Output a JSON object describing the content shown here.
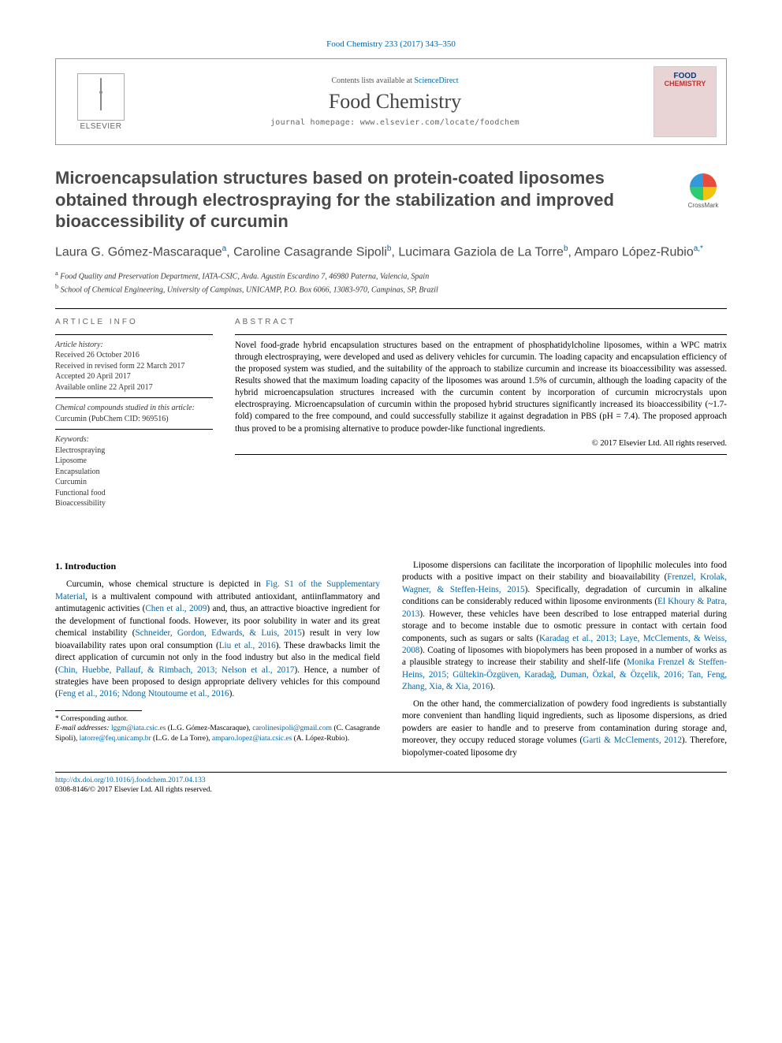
{
  "citation": "Food Chemistry 233 (2017) 343–350",
  "banner": {
    "contents_prefix": "Contents lists available at ",
    "contents_link": "ScienceDirect",
    "journal": "Food Chemistry",
    "homepage_prefix": "journal homepage: ",
    "homepage_url": "www.elsevier.com/locate/foodchem",
    "publisher_label": "ELSEVIER",
    "cover_line1": "FOOD",
    "cover_line2": "CHEMISTRY"
  },
  "crossmark_label": "CrossMark",
  "title": "Microencapsulation structures based on protein-coated liposomes obtained through electrospraying for the stabilization and improved bioaccessibility of curcumin",
  "authors_html": "Laura G. Gómez-Mascaraque|a|, Caroline Casagrande Sipoli|b|, Lucimara Gaziola de La Torre|b|, Amparo López-Rubio|a,*|",
  "authors": [
    {
      "name": "Laura G. Gómez-Mascaraque",
      "aff": "a"
    },
    {
      "name": "Caroline Casagrande Sipoli",
      "aff": "b"
    },
    {
      "name": "Lucimara Gaziola de La Torre",
      "aff": "b"
    },
    {
      "name": "Amparo López-Rubio",
      "aff": "a,*"
    }
  ],
  "affiliations": {
    "a": "Food Quality and Preservation Department, IATA-CSIC, Avda. Agustín Escardino 7, 46980 Paterna, Valencia, Spain",
    "b": "School of Chemical Engineering, University of Campinas, UNICAMP, P.O. Box 6066, 13083-970, Campinas, SP, Brazil"
  },
  "info": {
    "heading": "ARTICLE INFO",
    "history_label": "Article history:",
    "received": "Received 26 October 2016",
    "revised": "Received in revised form 22 March 2017",
    "accepted": "Accepted 20 April 2017",
    "online": "Available online 22 April 2017",
    "compounds_label": "Chemical compounds studied in this article:",
    "compound": "Curcumin (PubChem CID: 969516)",
    "keywords_label": "Keywords:",
    "keywords": [
      "Electrospraying",
      "Liposome",
      "Encapsulation",
      "Curcumin",
      "Functional food",
      "Bioaccessibility"
    ]
  },
  "abstract": {
    "heading": "ABSTRACT",
    "text": "Novel food-grade hybrid encapsulation structures based on the entrapment of phosphatidylcholine liposomes, within a WPC matrix through electrospraying, were developed and used as delivery vehicles for curcumin. The loading capacity and encapsulation efficiency of the proposed system was studied, and the suitability of the approach to stabilize curcumin and increase its bioaccessibility was assessed. Results showed that the maximum loading capacity of the liposomes was around 1.5% of curcumin, although the loading capacity of the hybrid microencapsulation structures increased with the curcumin content by incorporation of curcumin microcrystals upon electrospraying. Microencapsulation of curcumin within the proposed hybrid structures significantly increased its bioaccessibility (~1.7-fold) compared to the free compound, and could successfully stabilize it against degradation in PBS (pH = 7.4). The proposed approach thus proved to be a promising alternative to produce powder-like functional ingredients.",
    "copyright": "© 2017 Elsevier Ltd. All rights reserved."
  },
  "body": {
    "intro_heading": "1. Introduction",
    "left_p1a": "Curcumin, whose chemical structure is depicted in ",
    "left_p1_link": "Fig. S1 of the Supplementary Material",
    "left_p1b": ", is a multivalent compound with attributed antioxidant, antiinflammatory and antimutagenic activities (",
    "left_p1_cite1": "Chen et al., 2009",
    "left_p1c": ") and, thus, an attractive bioactive ingredient for the development of functional foods. However, its poor solubility in water and its great chemical instability (",
    "left_p1_cite2": "Schneider, Gordon, Edwards, & Luis, 2015",
    "left_p1d": ") result in very low bioavailability rates upon oral consumption (",
    "left_p1_cite3": "Liu et al., 2016",
    "left_p1e": "). These drawbacks limit the direct application of curcumin not only in the food industry but also in the medical field (",
    "left_p1_cite4": "Chin, Huebbe, Pallauf, & Rimbach, 2013; Nelson et al., 2017",
    "left_p1f": "). Hence, a number of strategies have been proposed to design appropriate delivery vehicles for this compound (",
    "left_p1_cite5": "Feng et al., 2016; Ndong Ntoutoume et al., 2016",
    "left_p1g": ").",
    "right_p1a": "Liposome dispersions can facilitate the incorporation of lipophilic molecules into food products with a positive impact on their stability and bioavailability (",
    "right_p1_cite1": "Frenzel, Krolak, Wagner, & Steffen-Heins, 2015",
    "right_p1b": "). Specifically, degradation of curcumin in alkaline conditions can be considerably reduced within liposome environments (",
    "right_p1_cite2": "El Khoury & Patra, 2013",
    "right_p1c": "). However, these vehicles have been described to lose entrapped material during storage and to become instable due to osmotic pressure in contact with certain food components, such as sugars or salts (",
    "right_p1_cite3": "Karadag et al., 2013; Laye, McClements, & Weiss, 2008",
    "right_p1d": "). Coating of liposomes with biopolymers has been proposed in a number of works as a plausible strategy to increase their stability and shelf-life (",
    "right_p1_cite4": "Monika Frenzel & Steffen-Heins, 2015; Gültekin-Özgüven, Karadağ, Duman, Özkal, & Özçelik, 2016; Tan, Feng, Zhang, Xia, & Xia, 2016",
    "right_p1e": ").",
    "right_p2a": "On the other hand, the commercialization of powdery food ingredients is substantially more convenient than handling liquid ingredients, such as liposome dispersions, as dried powders are easier to handle and to preserve from contamination during storage and, moreover, they occupy reduced storage volumes (",
    "right_p2_cite1": "Garti & McClements, 2012",
    "right_p2b": "). Therefore, biopolymer-coated liposome dry"
  },
  "footnotes": {
    "corr_label": "* Corresponding author.",
    "email_label": "E-mail addresses: ",
    "emails": [
      {
        "addr": "lggm@iata.csic.es",
        "who": "(L.G. Gómez-Mascaraque)"
      },
      {
        "addr": "carolinesipoli@gmail.com",
        "who": "(C. Casagrande Sipoli)"
      },
      {
        "addr": "latorre@feq.unicamp.br",
        "who": "(L.G. de La Torre)"
      },
      {
        "addr": "amparo.lopez@iata.csic.es",
        "who": "(A. López-Rubio)"
      }
    ]
  },
  "doi": {
    "url": "http://dx.doi.org/10.1016/j.foodchem.2017.04.133",
    "issn_line": "0308-8146/© 2017 Elsevier Ltd. All rights reserved."
  },
  "colors": {
    "link": "#0066aa",
    "text": "#000000",
    "heading_grey": "#4a4a4a"
  }
}
